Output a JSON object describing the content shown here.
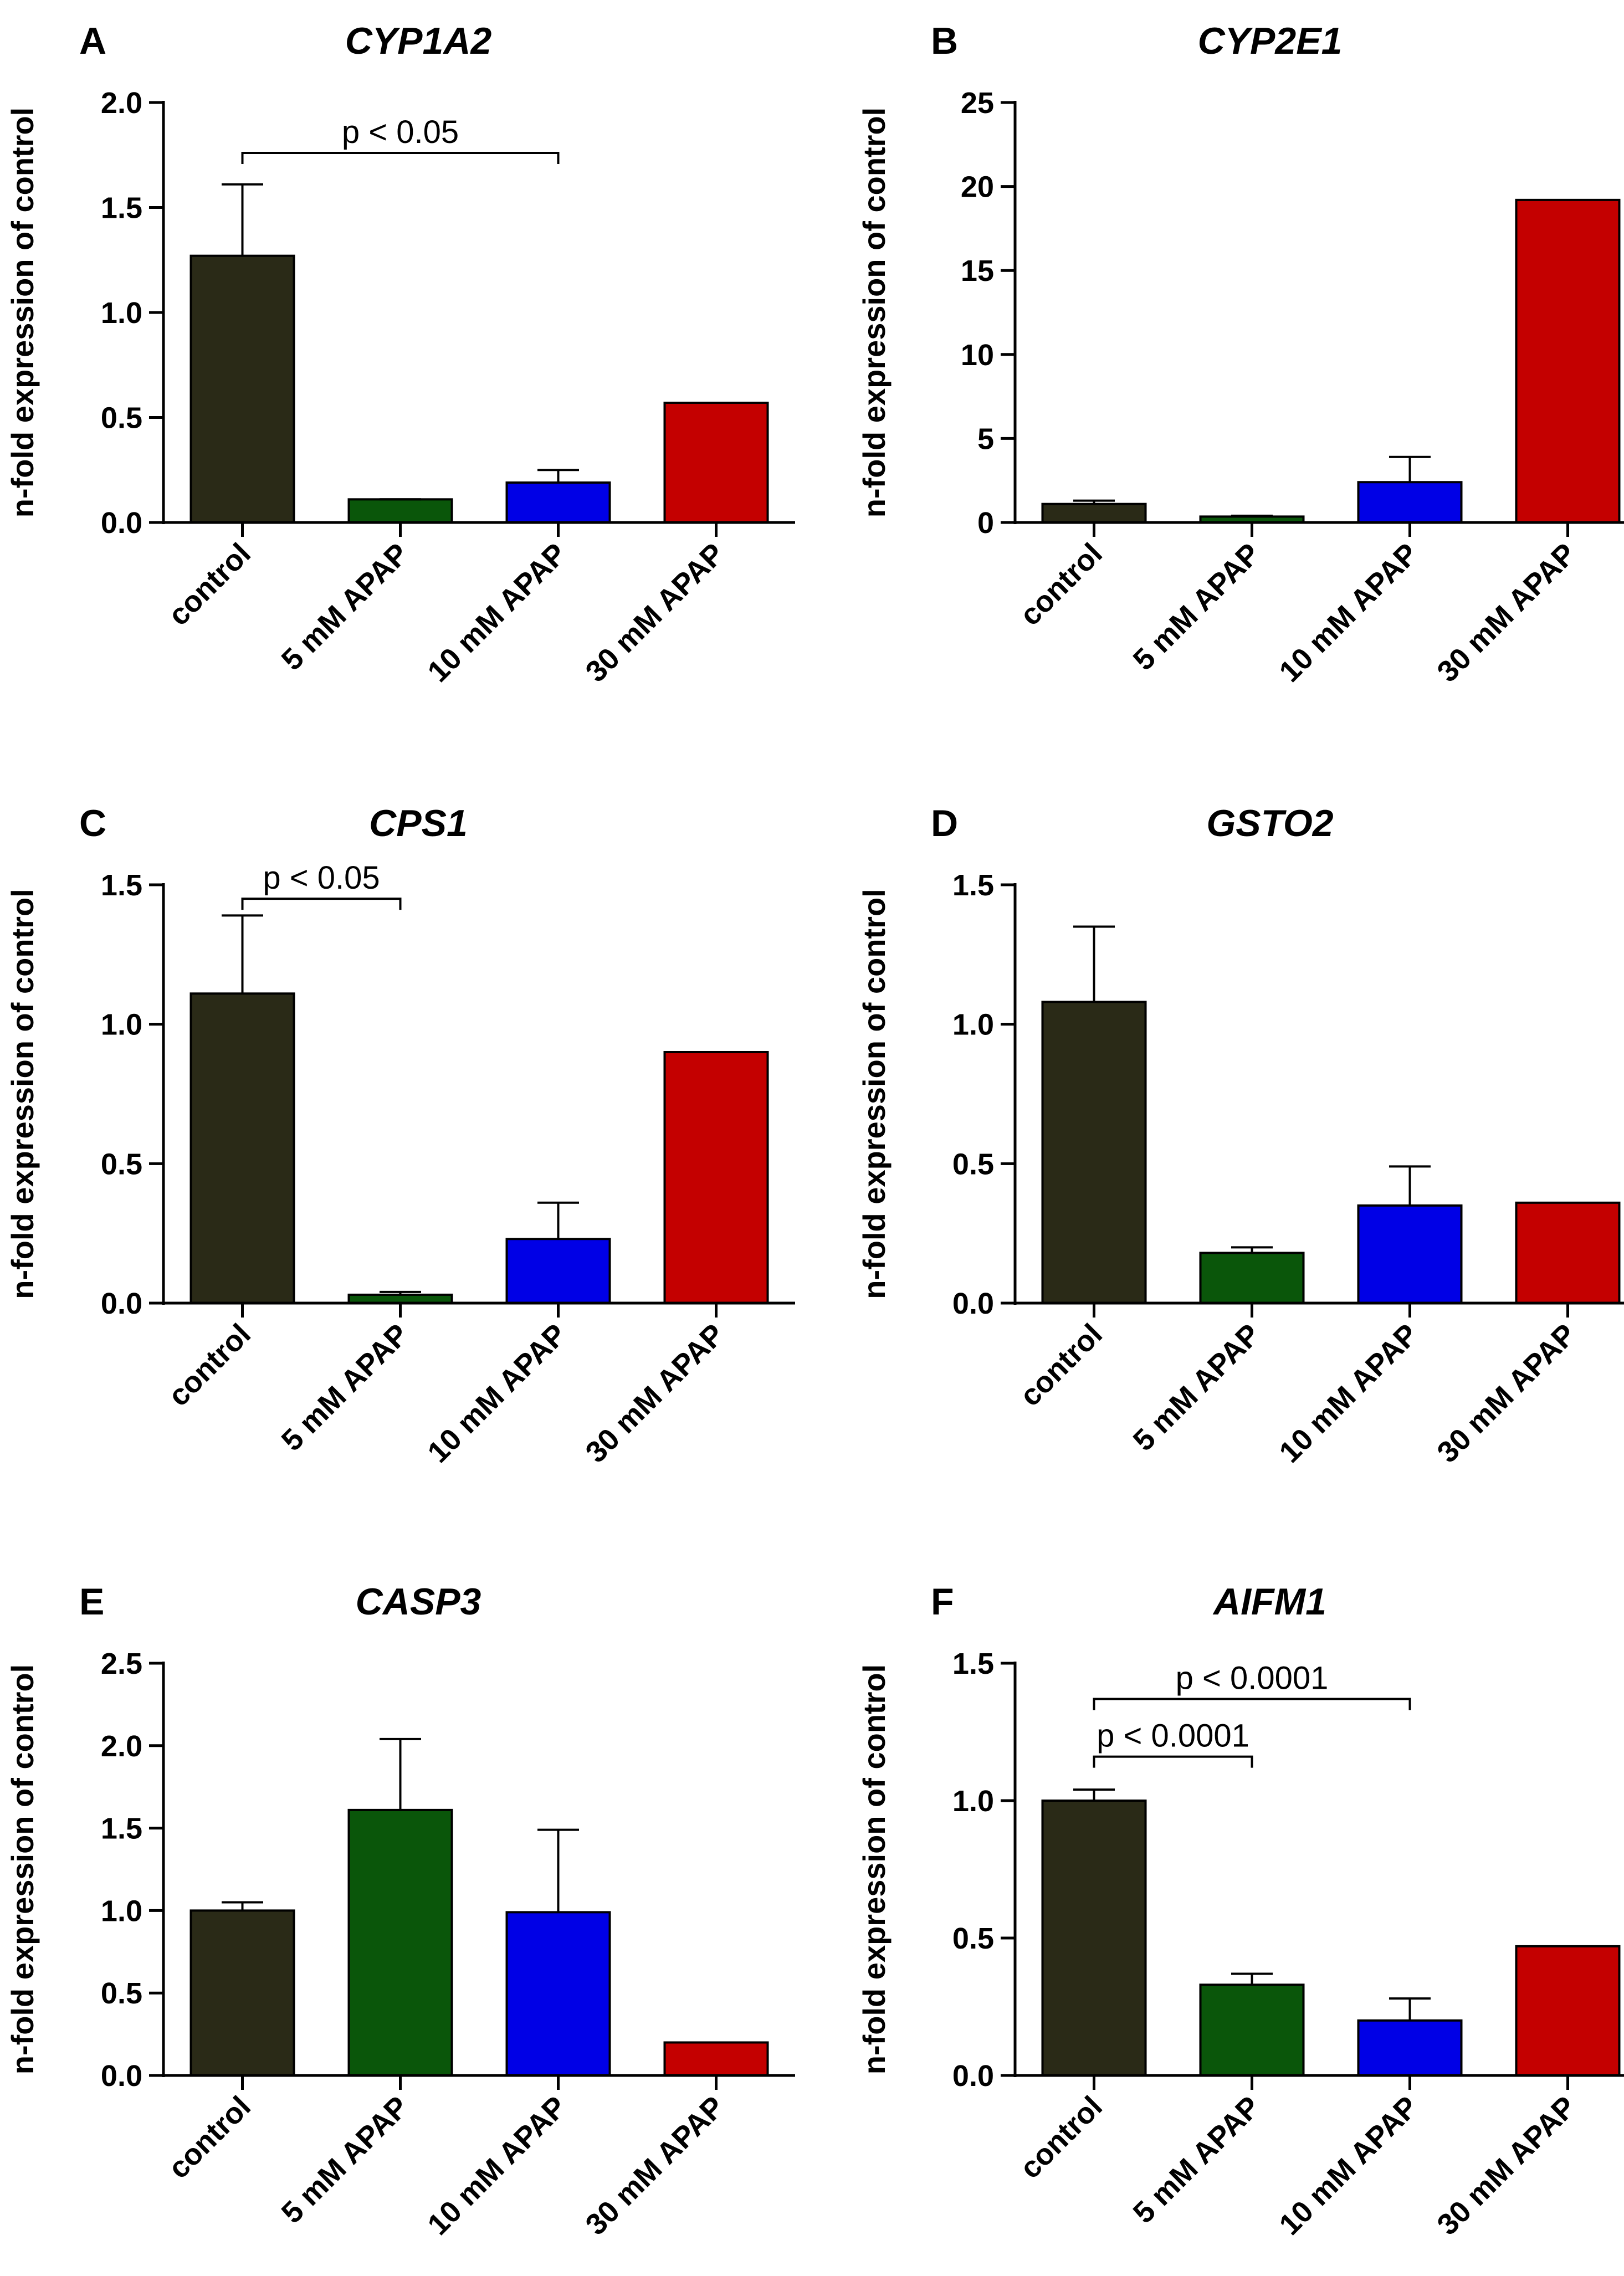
{
  "figure": {
    "background": "#ffffff"
  },
  "colors": {
    "control": "#2a2a17",
    "5 mM APAP": "#0a560a",
    "10 mM APAP": "#0000e6",
    "30 mM APAP": "#c40000"
  },
  "chart_data": [
    {
      "panel": "A",
      "title": "CYP1A2",
      "type": "bar",
      "categories": [
        "control",
        "5 mM APAP",
        "10 mM APAP",
        "30 mM APAP"
      ],
      "values": [
        1.27,
        0.11,
        0.19,
        0.57
      ],
      "errors": [
        0.34,
        0.0,
        0.06,
        null
      ],
      "ylabel": "n-fold expression of control",
      "ylim": [
        0,
        2.0
      ],
      "yticks": [
        "0.0",
        "0.5",
        "1.0",
        "1.5",
        "2.0"
      ],
      "annotations": [
        {
          "text": "p < 0.05",
          "from": 0,
          "to": 2,
          "y": 1.76
        }
      ]
    },
    {
      "panel": "B",
      "title": "CYP2E1",
      "type": "bar",
      "categories": [
        "control",
        "5 mM APAP",
        "10 mM APAP",
        "30 mM APAP"
      ],
      "values": [
        1.1,
        0.35,
        2.4,
        19.2
      ],
      "errors": [
        0.2,
        0.05,
        1.5,
        null
      ],
      "ylabel": "n-fold expression of control",
      "ylim": [
        0,
        25
      ],
      "yticks": [
        "0",
        "5",
        "10",
        "15",
        "20",
        "25"
      ],
      "annotations": []
    },
    {
      "panel": "C",
      "title": "CPS1",
      "type": "bar",
      "categories": [
        "control",
        "5 mM APAP",
        "10 mM APAP",
        "30 mM APAP"
      ],
      "values": [
        1.11,
        0.03,
        0.23,
        0.9
      ],
      "errors": [
        0.28,
        0.01,
        0.13,
        null
      ],
      "ylabel": "n-fold expression of control",
      "ylim": [
        0,
        1.5
      ],
      "yticks": [
        "0.0",
        "0.5",
        "1.0",
        "1.5"
      ],
      "annotations": [
        {
          "text": "p < 0.05",
          "from": 0,
          "to": 1,
          "y": 1.45
        }
      ]
    },
    {
      "panel": "D",
      "title": "GSTO2",
      "type": "bar",
      "categories": [
        "control",
        "5 mM APAP",
        "10 mM APAP",
        "30 mM APAP"
      ],
      "values": [
        1.08,
        0.18,
        0.35,
        0.36
      ],
      "errors": [
        0.27,
        0.02,
        0.14,
        null
      ],
      "ylabel": "n-fold expression of control",
      "ylim": [
        0,
        1.5
      ],
      "yticks": [
        "0.0",
        "0.5",
        "1.0",
        "1.5"
      ],
      "annotations": []
    },
    {
      "panel": "E",
      "title": "CASP3",
      "type": "bar",
      "categories": [
        "control",
        "5 mM APAP",
        "10 mM APAP",
        "30 mM APAP"
      ],
      "values": [
        1.0,
        1.61,
        0.99,
        0.2
      ],
      "errors": [
        0.05,
        0.43,
        0.5,
        null
      ],
      "ylabel": "n-fold expression of control",
      "ylim": [
        0,
        2.5
      ],
      "yticks": [
        "0.0",
        "0.5",
        "1.0",
        "1.5",
        "2.0",
        "2.5"
      ],
      "annotations": []
    },
    {
      "panel": "F",
      "title": "AIFM1",
      "type": "bar",
      "categories": [
        "control",
        "5 mM APAP",
        "10 mM APAP",
        "30 mM APAP"
      ],
      "values": [
        1.0,
        0.33,
        0.2,
        0.47
      ],
      "errors": [
        0.04,
        0.04,
        0.08,
        null
      ],
      "ylabel": "n-fold expression of control",
      "ylim": [
        0,
        1.5
      ],
      "yticks": [
        "0.0",
        "0.5",
        "1.0",
        "1.5"
      ],
      "annotations": [
        {
          "text": "p < 0.0001",
          "from": 0,
          "to": 2,
          "y": 1.37
        },
        {
          "text": "p < 0.0001",
          "from": 0,
          "to": 1,
          "y": 1.16
        }
      ]
    }
  ]
}
